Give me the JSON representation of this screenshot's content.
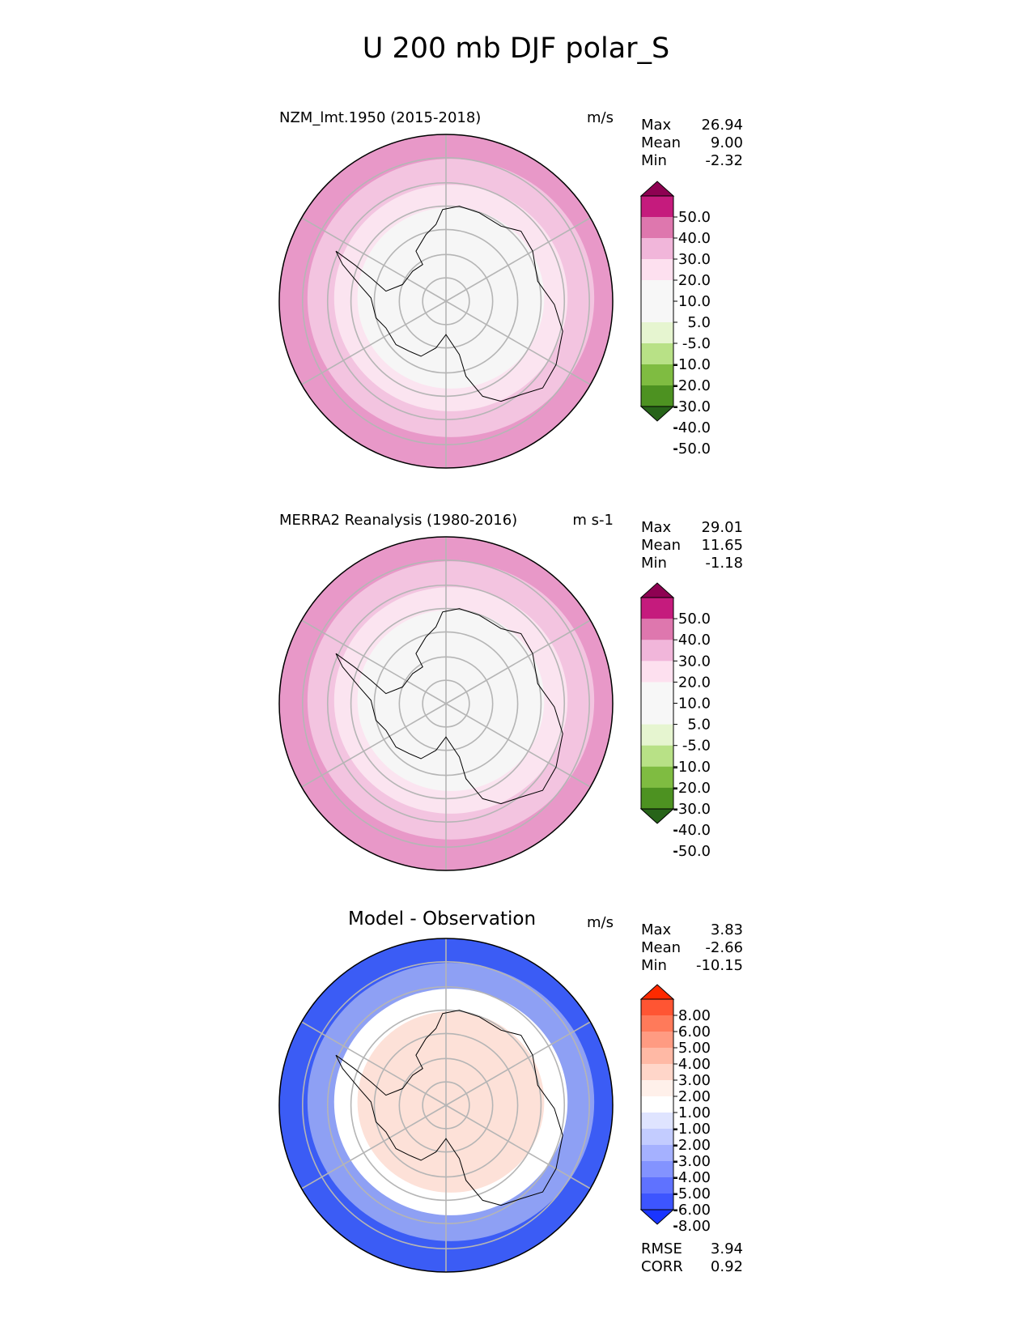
{
  "figure": {
    "title": "U 200 mb DJF polar_S"
  },
  "panels": [
    {
      "title": "NZM_lmt.1950 (2015-2018)",
      "units": "m/s",
      "stats": [
        {
          "label": "Max",
          "value": "26.94"
        },
        {
          "label": "Mean",
          "value": "9.00"
        },
        {
          "label": "Min",
          "value": "-2.32"
        }
      ],
      "colorbar": {
        "labels": [
          "50.0",
          "40.0",
          "30.0",
          "20.0",
          "10.0",
          "5.0",
          "-5.0",
          "-10.0",
          "-20.0",
          "-30.0",
          "-40.0",
          "-50.0"
        ],
        "colors": [
          "#8e0152",
          "#c51b7d",
          "#de77ae",
          "#f1b6da",
          "#fde0ef",
          "#f7f7f7",
          "#f7f7f7",
          "#e6f5d0",
          "#b8e186",
          "#7fbc41",
          "#4d9221",
          "#276419"
        ]
      },
      "rings": [
        "#e898c8",
        "#f3c4e0",
        "#fbe4f0",
        "#f6f6f6"
      ]
    },
    {
      "title": "MERRA2 Reanalysis (1980-2016)",
      "units": "m s-1",
      "stats": [
        {
          "label": "Max",
          "value": "29.01"
        },
        {
          "label": "Mean",
          "value": "11.65"
        },
        {
          "label": "Min",
          "value": "-1.18"
        }
      ],
      "colorbar": {
        "labels": [
          "50.0",
          "40.0",
          "30.0",
          "20.0",
          "10.0",
          "5.0",
          "-5.0",
          "-10.0",
          "-20.0",
          "-30.0",
          "-40.0",
          "-50.0"
        ],
        "colors": [
          "#8e0152",
          "#c51b7d",
          "#de77ae",
          "#f1b6da",
          "#fde0ef",
          "#f7f7f7",
          "#f7f7f7",
          "#e6f5d0",
          "#b8e186",
          "#7fbc41",
          "#4d9221",
          "#276419"
        ]
      },
      "rings": [
        "#e898c8",
        "#f3c4e0",
        "#fbe4f0",
        "#f6f6f6"
      ]
    },
    {
      "title": "Model - Observation",
      "units": "m/s",
      "stats": [
        {
          "label": "Max",
          "value": "3.83"
        },
        {
          "label": "Mean",
          "value": "-2.66"
        },
        {
          "label": "Min",
          "value": "-10.15"
        }
      ],
      "colorbar": {
        "labels": [
          "8.00",
          "6.00",
          "5.00",
          "4.00",
          "3.00",
          "2.00",
          "1.00",
          "-1.00",
          "-2.00",
          "-3.00",
          "-4.00",
          "-5.00",
          "-6.00",
          "-8.00"
        ],
        "colors": [
          "#ff2a00",
          "#ff5533",
          "#ff7a5a",
          "#ff9b82",
          "#ffb9a5",
          "#ffd6c9",
          "#fff0ea",
          "#ffffff",
          "#dfe4ff",
          "#c3ccff",
          "#a5b1ff",
          "#8393ff",
          "#5f72ff",
          "#3d55ff",
          "#1a35ff"
        ]
      },
      "extra_stats": [
        {
          "label": "RMSE",
          "value": "3.94"
        },
        {
          "label": "CORR",
          "value": "0.92"
        }
      ],
      "rings": [
        "#3b5cf5",
        "#8ea0f4",
        "#ffffff",
        "#fde1d8"
      ]
    }
  ]
}
